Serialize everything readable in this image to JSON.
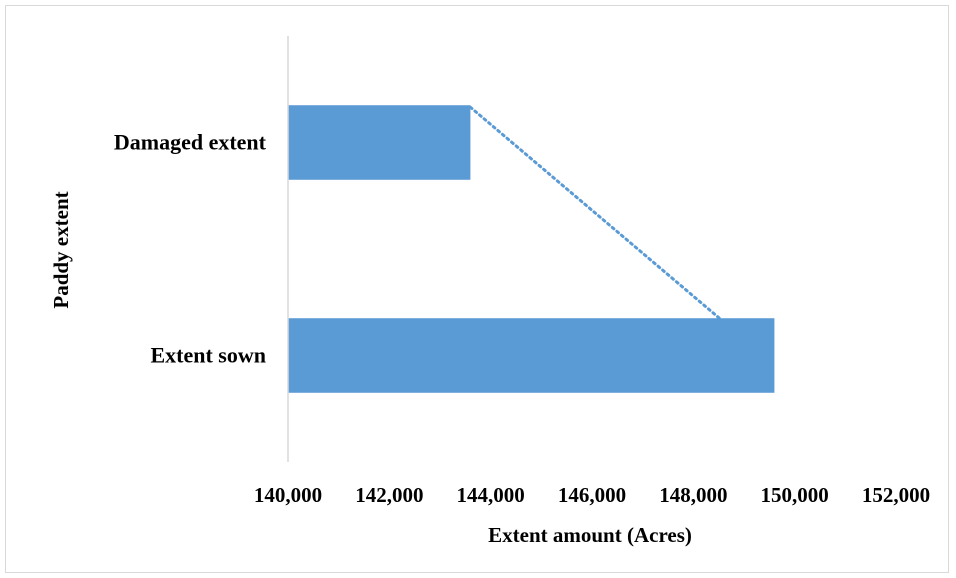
{
  "chart_data": {
    "type": "bar",
    "orientation": "horizontal",
    "categories": [
      "Damaged extent",
      "Extent sown"
    ],
    "values": [
      143600,
      149600
    ],
    "xlabel": "Extent amount (Acres)",
    "ylabel": "Paddy extent",
    "xlim": [
      140000,
      152000
    ],
    "xticks": [
      "140,000",
      "142,000",
      "144,000",
      "146,000",
      "148,000",
      "150,000",
      "152,000"
    ],
    "xtick_values": [
      140000,
      142000,
      144000,
      146000,
      148000,
      150000,
      152000
    ],
    "trendline": "linear-dotted",
    "grid": false,
    "legend": "none",
    "colors": {
      "bar": "#5b9bd5",
      "trendline": "#5b9bd5",
      "axis": "#d9d9d9"
    }
  }
}
